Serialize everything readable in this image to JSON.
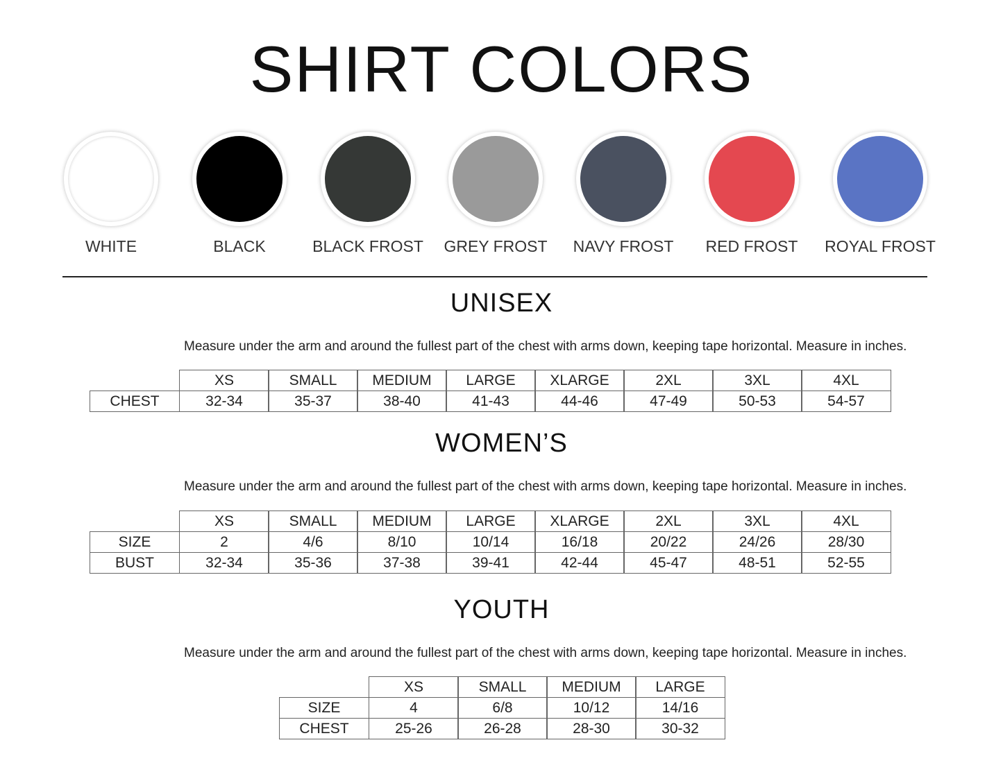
{
  "title": "SHIRT COLORS",
  "colors": [
    {
      "label": "WHITE",
      "hex": "#ffffff"
    },
    {
      "label": "BLACK",
      "hex": "#000000"
    },
    {
      "label": "BLACK FROST",
      "hex": "#353836"
    },
    {
      "label": "GREY FROST",
      "hex": "#9a9a9a"
    },
    {
      "label": "NAVY FROST",
      "hex": "#4a5160"
    },
    {
      "label": "RED FROST",
      "hex": "#e44850"
    },
    {
      "label": "ROYAL FROST",
      "hex": "#5a74c4"
    }
  ],
  "sections": [
    {
      "title": "UNISEX",
      "description": "Measure under the arm and around the fullest part of the chest with arms down, keeping tape horizontal. Measure in inches.",
      "headers": [
        "XS",
        "SMALL",
        "MEDIUM",
        "LARGE",
        "XLARGE",
        "2XL",
        "3XL",
        "4XL"
      ],
      "rows": [
        {
          "label": "CHEST",
          "values": [
            "32-34",
            "35-37",
            "38-40",
            "41-43",
            "44-46",
            "47-49",
            "50-53",
            "54-57"
          ]
        }
      ]
    },
    {
      "title": "WOMEN’S",
      "description": "Measure under the arm and around the fullest part of the chest with arms down, keeping tape horizontal. Measure in inches.",
      "headers": [
        "XS",
        "SMALL",
        "MEDIUM",
        "LARGE",
        "XLARGE",
        "2XL",
        "3XL",
        "4XL"
      ],
      "rows": [
        {
          "label": "SIZE",
          "values": [
            "2",
            "4/6",
            "8/10",
            "10/14",
            "16/18",
            "20/22",
            "24/26",
            "28/30"
          ]
        },
        {
          "label": "BUST",
          "values": [
            "32-34",
            "35-36",
            "37-38",
            "39-41",
            "42-44",
            "45-47",
            "48-51",
            "52-55"
          ]
        }
      ]
    },
    {
      "title": "YOUTH",
      "description": "Measure under the arm and around the fullest part of the chest with arms down, keeping tape horizontal. Measure in inches.",
      "headers": [
        "XS",
        "SMALL",
        "MEDIUM",
        "LARGE"
      ],
      "rows": [
        {
          "label": "SIZE",
          "values": [
            "4",
            "6/8",
            "10/12",
            "14/16"
          ]
        },
        {
          "label": "CHEST",
          "values": [
            "25-26",
            "26-28",
            "28-30",
            "30-32"
          ]
        }
      ]
    }
  ]
}
